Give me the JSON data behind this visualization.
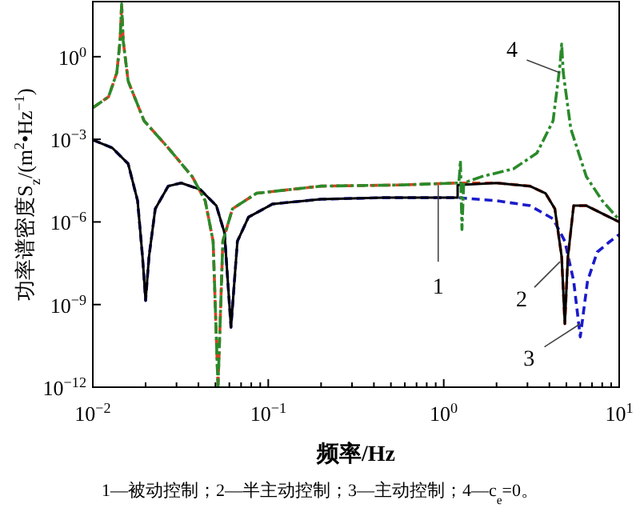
{
  "chart_data": {
    "type": "line",
    "xlabel": "频率/Hz",
    "ylabel": "功率谱密度S$_{z}$/(m$^{2}$•Hz$^{−1}$)",
    "log": "xy",
    "grid": false,
    "xlim": [
      0.01,
      10
    ],
    "ylim": [
      1e-12,
      100
    ],
    "xticks": [
      {
        "value": 0.01,
        "label": "10$^{−2}$"
      },
      {
        "value": 0.1,
        "label": "10$^{−1}$"
      },
      {
        "value": 1,
        "label": "10$^{0}$"
      },
      {
        "value": 10,
        "label": "10$^{1}$"
      }
    ],
    "yticks": [
      {
        "value": 1e-12,
        "label": "10$^{−12}$"
      },
      {
        "value": 1e-09,
        "label": "10$^{−9}$"
      },
      {
        "value": 1e-06,
        "label": "10$^{−6}$"
      },
      {
        "value": 0.001,
        "label": "10$^{−3}$"
      },
      {
        "value": 1,
        "label": "10$^{0}$"
      }
    ],
    "series": [
      {
        "color": "#1a1acc",
        "line_style": "dashed",
        "x": [
          0.01,
          0.0129,
          0.0159,
          0.018,
          0.0192,
          0.02,
          0.0209,
          0.0227,
          0.0269,
          0.0319,
          0.041,
          0.0506,
          0.0563,
          0.0613,
          0.0667,
          0.0772,
          0.106,
          0.2,
          0.46,
          1.2,
          2.0,
          3.1,
          4.2,
          4.9,
          5.5,
          6.0,
          6.6,
          7.5,
          8.9,
          10
        ],
        "values": [
          0.00095,
          0.00049,
          0.00013,
          5.9e-06,
          5.4e-08,
          1.4e-09,
          5.4e-08,
          3e-06,
          2e-05,
          2.6e-05,
          1.5e-05,
          3.9e-06,
          4e-07,
          1.5e-10,
          2e-07,
          1.5e-06,
          4.5e-06,
          6.7e-06,
          7.6e-06,
          7.6e-06,
          5.9e-06,
          3.9e-06,
          1.3e-06,
          2e-07,
          7.2e-09,
          6.7e-11,
          7.2e-09,
          8.1e-08,
          2e-07,
          3.5e-07
        ]
      },
      {
        "color": "#000000",
        "line_style": "solid",
        "x": [
          0.01,
          0.0129,
          0.0159,
          0.018,
          0.0192,
          0.02,
          0.0209,
          0.0227,
          0.0269,
          0.0319,
          0.041,
          0.0506,
          0.0563,
          0.0613,
          0.0667,
          0.0772,
          0.106,
          0.2,
          0.46,
          1.2,
          1.2,
          2.0,
          3.1,
          3.8,
          4.3,
          4.7,
          4.9,
          5.1,
          5.5,
          6.5,
          10
        ],
        "values": [
          0.00095,
          0.00049,
          0.00013,
          5.9e-06,
          5.4e-08,
          1.4e-09,
          5.4e-08,
          3e-06,
          2e-05,
          2.6e-05,
          1.5e-05,
          3.9e-06,
          4e-07,
          1.5e-10,
          2e-07,
          1.5e-06,
          4.5e-06,
          6.7e-06,
          7.6e-06,
          7.6e-06,
          2.2e-05,
          2.6e-05,
          2e-05,
          1.1e-05,
          3e-06,
          5.4e-08,
          2e-10,
          5.4e-08,
          3.9e-06,
          3.9e-06,
          1e-06
        ]
      },
      {
        "color": "#d9411e",
        "line_style": "dashed",
        "x": [
          0.01,
          0.0123,
          0.0137,
          0.0143,
          0.0146,
          0.0149,
          0.0159,
          0.0196,
          0.0269,
          0.0369,
          0.0437,
          0.0485,
          0.0517,
          0.0551,
          0.0625,
          0.0858,
          0.2,
          0.57,
          1.2,
          2.0,
          3.1,
          3.8,
          4.3,
          4.7,
          4.9,
          5.1,
          5.5,
          6.5,
          10
        ],
        "values": [
          0.014,
          0.035,
          0.26,
          3.8,
          83,
          3.8,
          0.13,
          0.0047,
          0.00049,
          4.4e-05,
          5.9e-06,
          2e-07,
          1e-12,
          2e-07,
          3e-06,
          1.1e-05,
          2e-05,
          2.2e-05,
          2.6e-05,
          2.6e-05,
          2e-05,
          1.1e-05,
          3e-06,
          5.4e-08,
          2e-10,
          5.4e-08,
          3.9e-06,
          3.9e-06,
          1e-06
        ]
      },
      {
        "color": "#2a8a2a",
        "line_style": "dashdot",
        "x": [
          0.01,
          0.0123,
          0.0137,
          0.0143,
          0.0146,
          0.0149,
          0.0159,
          0.0196,
          0.0269,
          0.0369,
          0.0437,
          0.0485,
          0.0517,
          0.0551,
          0.0625,
          0.0858,
          0.2,
          0.57,
          1.2,
          1.22,
          1.245,
          1.27,
          1.3,
          1.64,
          2.5,
          3.4,
          4.2,
          4.6,
          4.7,
          4.8,
          5.3,
          6.5,
          8.0,
          10
        ],
        "values": [
          0.014,
          0.035,
          0.26,
          3.8,
          83,
          3.8,
          0.13,
          0.0047,
          0.00049,
          4.4e-05,
          5.9e-06,
          2e-07,
          1e-12,
          2e-07,
          3e-06,
          1.1e-05,
          2e-05,
          2.2e-05,
          2.6e-05,
          2.6e-05,
          0.00017,
          5.3e-07,
          2.6e-05,
          4.4e-05,
          8.5e-05,
          0.00032,
          0.0047,
          0.51,
          2.9,
          0.26,
          0.0024,
          4.4e-05,
          5.9e-06,
          1.2e-06
        ]
      }
    ],
    "annotations": [
      {
        "text": "1",
        "x": 0.93,
        "y": 2.2e-05
      },
      {
        "text": "2",
        "x": 4.6,
        "y": 3.6e-08
      },
      {
        "text": "3",
        "x": 6.0,
        "y": 2e-10
      },
      {
        "text": "4",
        "x": 4.6,
        "y": 0.26
      },
      "1—被动控制；2—半主动控制；3—主动控制；4—c$_{e}$=0。"
    ]
  }
}
